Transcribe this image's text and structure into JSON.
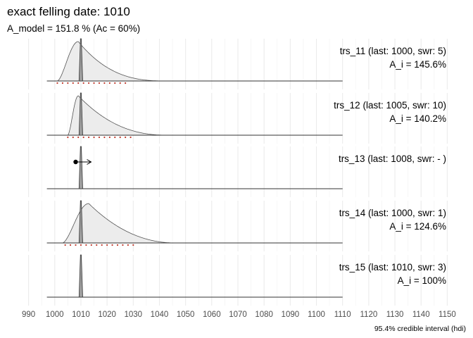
{
  "chart_data": {
    "type": "area",
    "title": "exact felling date:  1010",
    "subtitle": "A_model =  151.8 % (Ac = 60%)",
    "caption": "95.4% credible interval (hdi)",
    "felling_date": 1010,
    "x_ticks": [
      990,
      1000,
      1010,
      1020,
      1030,
      1040,
      1050,
      1060,
      1070,
      1080,
      1090,
      1100,
      1110,
      1120,
      1130,
      1140,
      1150
    ],
    "xlim": [
      985,
      1155
    ],
    "series_range": [
      997,
      1110
    ],
    "panels": [
      {
        "label": "trs_11 (last: 1000, swr: 5)",
        "agreement": "A_i = 145.6%",
        "start": 1001,
        "peak": 1009,
        "end": 1043,
        "skew": 2.6,
        "hdi": [
          1001,
          1028
        ]
      },
      {
        "label": "trs_12 (last: 1005, swr: 10)",
        "agreement": "A_i = 140.2%",
        "start": 1005,
        "peak": 1009,
        "end": 1043,
        "skew": 2.2,
        "hdi": [
          1005,
          1030
        ]
      },
      {
        "label": "trs_13 (last: 1008, swr: - )",
        "agreement": "",
        "start": null,
        "peak": null,
        "end": null,
        "skew": null,
        "hdi": null,
        "arrow_from": 1008
      },
      {
        "label": "trs_14 (last: 1000, swr: 1)",
        "agreement": "A_i = 124.6%",
        "start": 1003,
        "peak": 1013,
        "end": 1046,
        "skew": 2.0,
        "hdi": [
          1004,
          1031
        ]
      },
      {
        "label": "trs_15 (last: 1010, swr: 3)",
        "agreement": "A_i = 100%",
        "start": null,
        "peak": null,
        "end": null,
        "skew": null,
        "hdi": null
      }
    ],
    "colors": {
      "density_fill": "#ececec",
      "density_line": "#555555",
      "spike_fill": "#9e9e9e",
      "hdi_dots": "#c0392b",
      "grid": "#ebebeb",
      "axis_text": "#4d4d4d"
    }
  }
}
